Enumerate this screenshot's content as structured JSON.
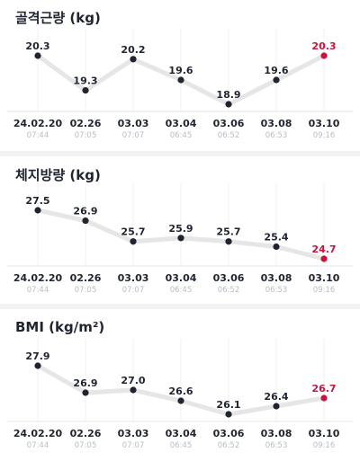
{
  "colors": {
    "line": "#e6e6e6",
    "point": "#1f2430",
    "highlight": "#c8143c",
    "label": "#1f2430",
    "date": "#1f2430",
    "time": "#b8bcc4",
    "grid": "#f0f0f0",
    "separator": "#f2f3f5"
  },
  "chart_data": [
    {
      "type": "line",
      "title": "골격근량 (kg)",
      "x": [
        "24.02.20",
        "02.26",
        "03.03",
        "03.04",
        "03.06",
        "03.08",
        "03.10"
      ],
      "times": [
        "07:44",
        "07:05",
        "07:07",
        "06:45",
        "06:52",
        "06:53",
        "09:16"
      ],
      "values": [
        20.3,
        19.3,
        20.2,
        19.6,
        18.9,
        19.6,
        20.3
      ],
      "highlight_index": 6,
      "ylim": [
        18.9,
        20.3
      ],
      "grid": true
    },
    {
      "type": "line",
      "title": "체지방량 (kg)",
      "x": [
        "24.02.20",
        "02.26",
        "03.03",
        "03.04",
        "03.06",
        "03.08",
        "03.10"
      ],
      "times": [
        "07:44",
        "07:05",
        "07:07",
        "06:45",
        "06:52",
        "06:53",
        "09:16"
      ],
      "values": [
        27.5,
        26.9,
        25.7,
        25.9,
        25.7,
        25.4,
        24.7
      ],
      "highlight_index": 6,
      "ylim": [
        24.7,
        27.5
      ],
      "grid": true
    },
    {
      "type": "line",
      "title": "BMI (kg/m²)",
      "x": [
        "24.02.20",
        "02.26",
        "03.03",
        "03.04",
        "03.06",
        "03.08",
        "03.10"
      ],
      "times": [
        "07:44",
        "07:05",
        "07:07",
        "06:45",
        "06:52",
        "06:53",
        "09:16"
      ],
      "values": [
        27.9,
        26.9,
        27.0,
        26.6,
        26.1,
        26.4,
        26.7
      ],
      "highlight_index": 6,
      "ylim": [
        26.1,
        27.9
      ],
      "grid": true
    }
  ]
}
